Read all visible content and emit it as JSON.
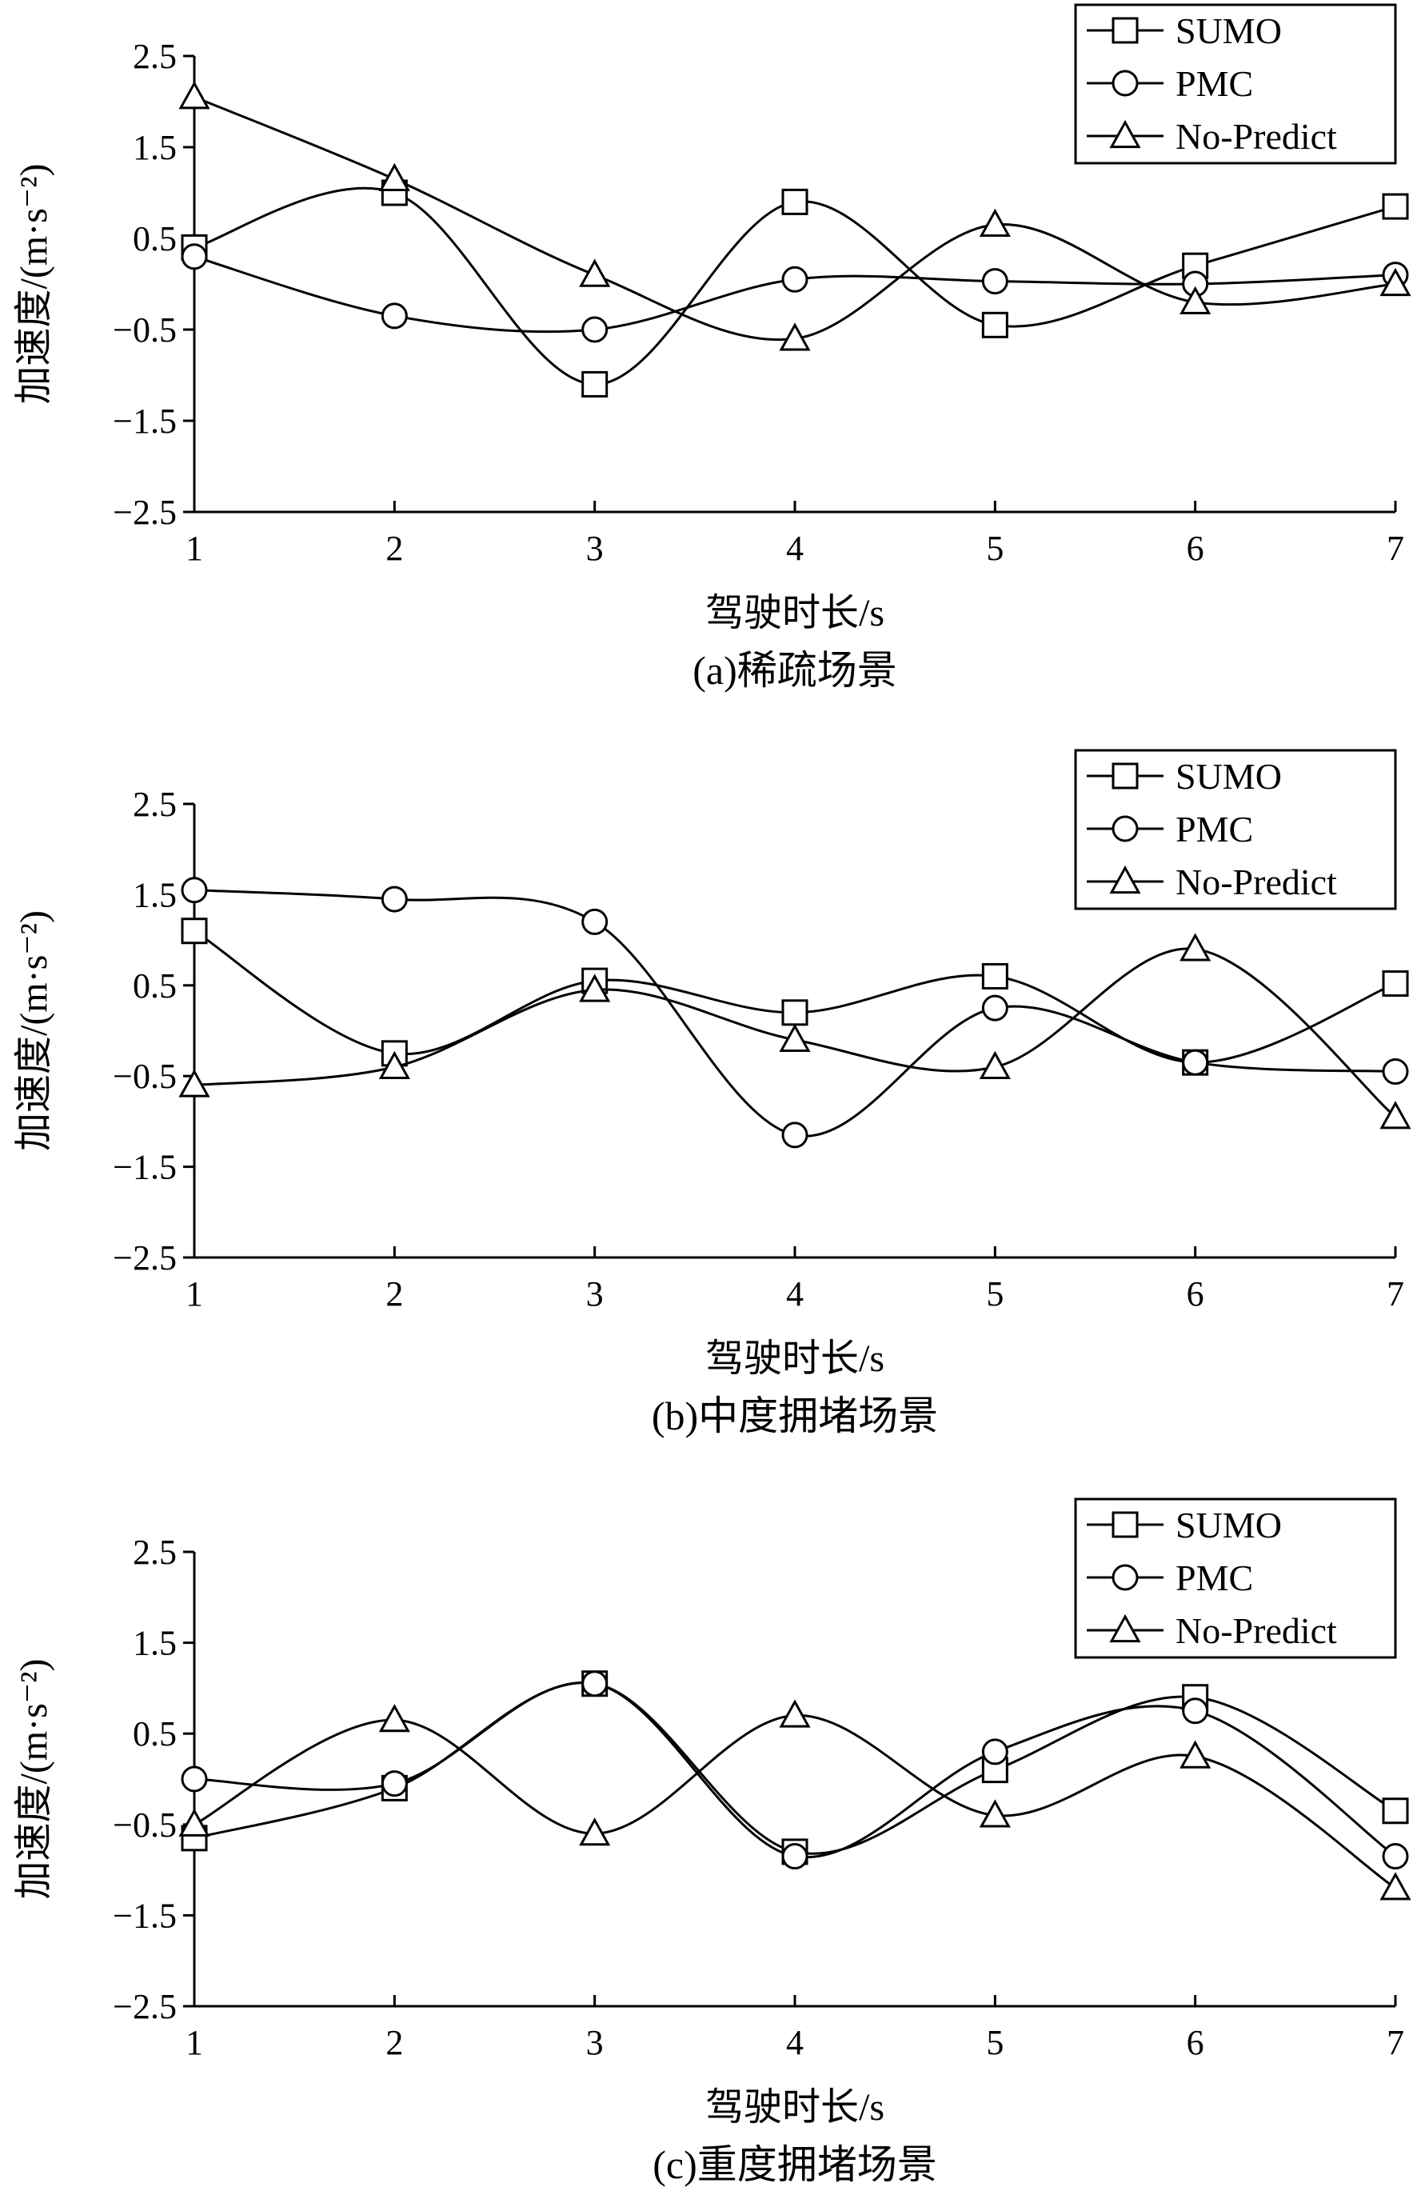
{
  "chart_data": [
    {
      "type": "line",
      "caption": "(a)稀疏场景",
      "xlabel": "驾驶时长/s",
      "ylabel": "加速度/(m·s⁻²)",
      "x": [
        1,
        2,
        3,
        4,
        5,
        6,
        7
      ],
      "xlim": [
        1,
        7
      ],
      "ylim": [
        -2.5,
        2.5
      ],
      "yticks": [
        "2.5",
        "1.5",
        "0.5",
        "−0.5",
        "−1.5",
        "−2.5"
      ],
      "xticks": [
        "1",
        "2",
        "3",
        "4",
        "5",
        "6",
        "7"
      ],
      "legend_position": "top-right",
      "grid": false,
      "series": [
        {
          "name": "SUMO",
          "marker": "square",
          "values": [
            0.4,
            1.0,
            -1.1,
            0.9,
            -0.45,
            0.2,
            0.85
          ]
        },
        {
          "name": "PMC",
          "marker": "circle",
          "values": [
            0.3,
            -0.35,
            -0.5,
            0.05,
            0.03,
            0.0,
            0.1
          ]
        },
        {
          "name": "No-Predict",
          "marker": "triangle",
          "values": [
            2.05,
            1.15,
            0.1,
            -0.6,
            0.65,
            -0.2,
            0.0
          ]
        }
      ]
    },
    {
      "type": "line",
      "caption": "(b)中度拥堵场景",
      "xlabel": "驾驶时长/s",
      "ylabel": "加速度/(m·s⁻²)",
      "x": [
        1,
        2,
        3,
        4,
        5,
        6,
        7
      ],
      "xlim": [
        1,
        7
      ],
      "ylim": [
        -2.5,
        2.5
      ],
      "yticks": [
        "2.5",
        "1.5",
        "0.5",
        "−0.5",
        "−1.5",
        "−2.5"
      ],
      "xticks": [
        "1",
        "2",
        "3",
        "4",
        "5",
        "6",
        "7"
      ],
      "legend_position": "top-right",
      "grid": false,
      "series": [
        {
          "name": "SUMO",
          "marker": "square",
          "values": [
            1.1,
            -0.25,
            0.55,
            0.2,
            0.6,
            -0.35,
            0.52
          ]
        },
        {
          "name": "PMC",
          "marker": "circle",
          "values": [
            1.55,
            1.45,
            1.2,
            -1.15,
            0.25,
            -0.35,
            -0.45
          ]
        },
        {
          "name": "No-Predict",
          "marker": "triangle",
          "values": [
            -0.6,
            -0.4,
            0.45,
            -0.1,
            -0.4,
            0.9,
            -0.95
          ]
        }
      ]
    },
    {
      "type": "line",
      "caption": "(c)重度拥堵场景",
      "xlabel": "驾驶时长/s",
      "ylabel": "加速度/(m·s⁻²)",
      "x": [
        1,
        2,
        3,
        4,
        5,
        6,
        7
      ],
      "xlim": [
        1,
        7
      ],
      "ylim": [
        -2.5,
        2.5
      ],
      "yticks": [
        "2.5",
        "1.5",
        "0.5",
        "−0.5",
        "−1.5",
        "−2.5"
      ],
      "xticks": [
        "1",
        "2",
        "3",
        "4",
        "5",
        "6",
        "7"
      ],
      "legend_position": "top-right",
      "grid": false,
      "series": [
        {
          "name": "SUMO",
          "marker": "square",
          "values": [
            -0.65,
            -0.1,
            1.05,
            -0.8,
            0.1,
            0.9,
            -0.35
          ]
        },
        {
          "name": "PMC",
          "marker": "circle",
          "values": [
            0.0,
            -0.05,
            1.05,
            -0.85,
            0.3,
            0.75,
            -0.85
          ]
        },
        {
          "name": "No-Predict",
          "marker": "triangle",
          "values": [
            -0.5,
            0.65,
            -0.6,
            0.7,
            -0.4,
            0.25,
            -1.2
          ]
        }
      ]
    }
  ]
}
